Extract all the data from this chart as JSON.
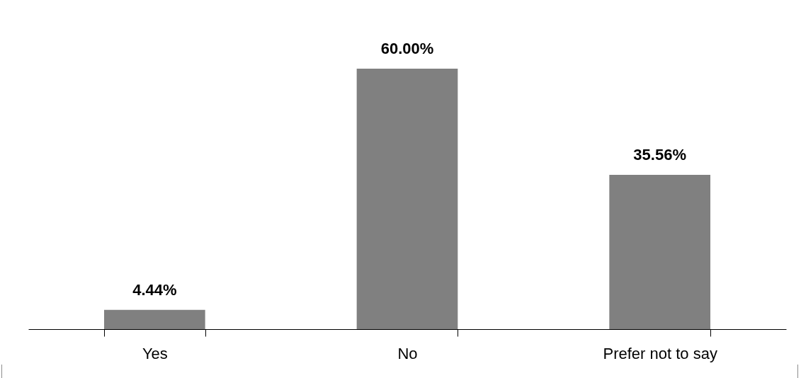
{
  "chart_data": {
    "type": "bar",
    "categories": [
      "Yes",
      "No",
      "Prefer not to say"
    ],
    "values": [
      4.44,
      60.0,
      35.56
    ],
    "value_labels": [
      "4.44%",
      "60.00%",
      "35.56%"
    ],
    "color": "#808080",
    "ylim": [
      0,
      75
    ]
  }
}
